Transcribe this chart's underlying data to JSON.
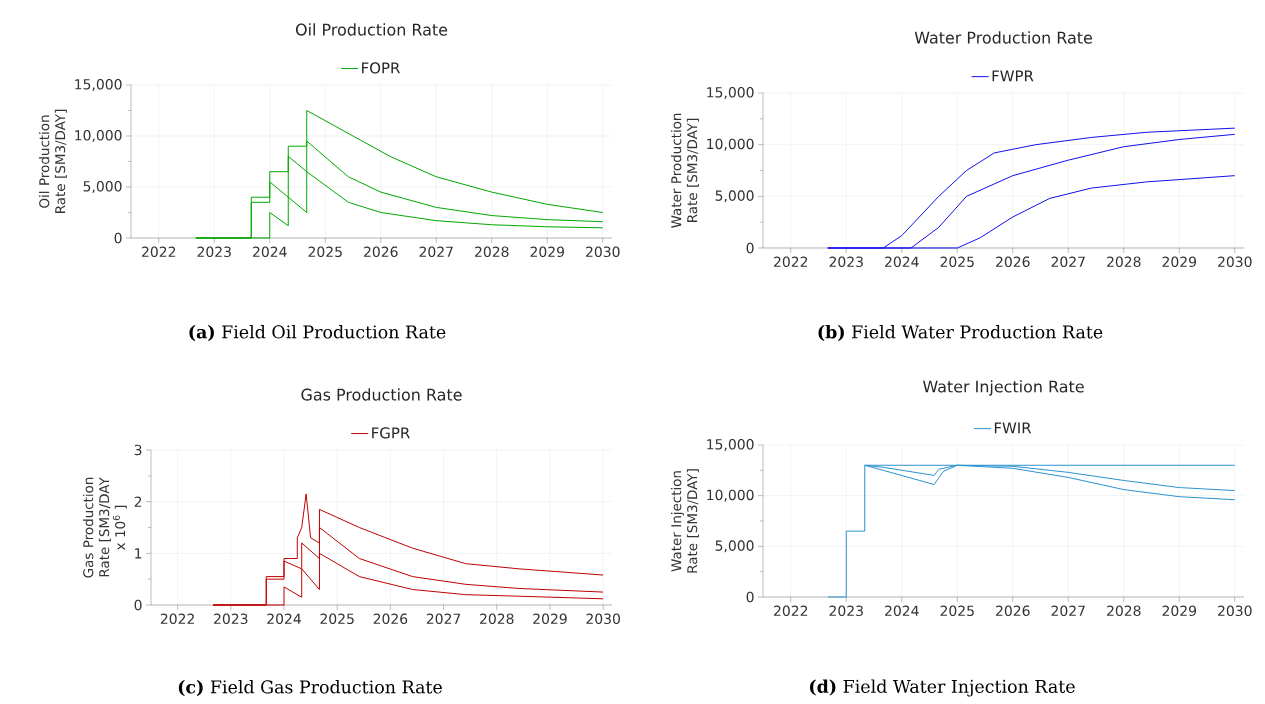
{
  "chart_data": [
    {
      "type": "line",
      "title": "Oil Production Rate",
      "ylabel": "Oil Production Rate [SM3/DAY]",
      "annotations": [
        "**(a)** Field Oil Production Rate"
      ],
      "grid": true,
      "legend": "top",
      "xlim": [
        "2021-07",
        "2030-03"
      ],
      "xticks": [
        "2022",
        "2023",
        "2024",
        "2025",
        "2026",
        "2027",
        "2028",
        "2029",
        "2030"
      ],
      "ylim": [
        0,
        15000
      ],
      "yticks": [
        0,
        {
          "value": 5000,
          "label": "5,000"
        },
        {
          "value": 10000,
          "label": "10,000"
        },
        {
          "value": 15000,
          "label": "15,000"
        }
      ],
      "series": [
        {
          "name": "FOPR",
          "color": "#00a800",
          "x": [
            "2022-09",
            "2023-09",
            "2023-09",
            "2024-01",
            "2024-01",
            "2024-05",
            "2024-05",
            "2024-09",
            "2024-09",
            "2025-03",
            "2025-09",
            "2026-03",
            "2027-01",
            "2028-01",
            "2029-01",
            "2030-01"
          ],
          "values": [
            0,
            0,
            4000,
            4000,
            6500,
            6500,
            9000,
            9000,
            12500,
            11000,
            9500,
            8000,
            6000,
            4500,
            3300,
            2500
          ]
        },
        {
          "color": "#00a800",
          "x": [
            "2022-09",
            "2023-09",
            "2023-09",
            "2024-01",
            "2024-01",
            "2024-05",
            "2024-05",
            "2024-09",
            "2024-09",
            "2025-06",
            "2026-01",
            "2027-01",
            "2028-01",
            "2029-01",
            "2030-01"
          ],
          "values": [
            0,
            0,
            3500,
            3500,
            5500,
            4000,
            8000,
            6500,
            9500,
            6000,
            4500,
            3000,
            2200,
            1800,
            1600
          ]
        },
        {
          "color": "#00a800",
          "x": [
            "2022-09",
            "2024-01",
            "2024-01",
            "2024-05",
            "2024-05",
            "2024-09",
            "2024-09",
            "2025-06",
            "2026-01",
            "2027-01",
            "2028-01",
            "2029-01",
            "2030-01"
          ],
          "values": [
            0,
            0,
            2500,
            1200,
            4000,
            2500,
            6500,
            3500,
            2500,
            1700,
            1300,
            1100,
            1000
          ]
        }
      ]
    },
    {
      "type": "line",
      "title": "Water Production Rate",
      "ylabel": "Water Production Rate [SM3/DAY]",
      "annotations": [
        "**(b)** Field Water Production Rate"
      ],
      "grid": true,
      "legend": "top",
      "xlim": [
        "2021-07",
        "2030-03"
      ],
      "xticks": [
        "2022",
        "2023",
        "2024",
        "2025",
        "2026",
        "2027",
        "2028",
        "2029",
        "2030"
      ],
      "ylim": [
        0,
        15000
      ],
      "yticks": [
        0,
        {
          "value": 5000,
          "label": "5,000"
        },
        {
          "value": 10000,
          "label": "10,000"
        },
        {
          "value": 15000,
          "label": "15,000"
        }
      ],
      "series": [
        {
          "name": "FWPR",
          "color": "#1010f0",
          "x": [
            "2022-09",
            "2023-09",
            "2024-01",
            "2024-09",
            "2025-03",
            "2025-09",
            "2026-06",
            "2027-06",
            "2028-06",
            "2030-01"
          ],
          "values": [
            0,
            0,
            1200,
            5000,
            7500,
            9200,
            10000,
            10700,
            11200,
            11600
          ]
        },
        {
          "color": "#1010f0",
          "x": [
            "2022-09",
            "2024-03",
            "2024-09",
            "2025-03",
            "2026-01",
            "2027-01",
            "2028-01",
            "2029-01",
            "2030-01"
          ],
          "values": [
            0,
            0,
            2000,
            5000,
            7000,
            8500,
            9800,
            10500,
            11000
          ]
        },
        {
          "color": "#1010f0",
          "x": [
            "2022-09",
            "2025-01",
            "2025-06",
            "2026-01",
            "2026-09",
            "2027-06",
            "2028-06",
            "2030-01"
          ],
          "values": [
            0,
            0,
            1000,
            3000,
            4800,
            5800,
            6400,
            7000
          ]
        }
      ]
    },
    {
      "type": "line",
      "title": "Gas Production Rate",
      "ylabel": "Gas Production Rate [SM3/DAY x 10$^{6}$ ]",
      "annotations": [
        "**(c)** Field Gas Production Rate"
      ],
      "grid": true,
      "legend": "top",
      "xlim": [
        "2021-07",
        "2030-03"
      ],
      "xticks": [
        "2022",
        "2023",
        "2024",
        "2025",
        "2026",
        "2027",
        "2028",
        "2029",
        "2030"
      ],
      "ylim": [
        0,
        3
      ],
      "yticks": [
        0,
        1,
        2,
        3
      ],
      "series": [
        {
          "name": "FGPR",
          "color": "#c00000",
          "x": [
            "2022-09",
            "2023-09",
            "2023-09",
            "2024-01",
            "2024-01",
            "2024-04",
            "2024-04",
            "2024-05",
            "2024-06",
            "2024-07",
            "2024-09",
            "2024-09",
            "2025-06",
            "2026-06",
            "2027-06",
            "2028-06",
            "2030-01"
          ],
          "values": [
            0,
            0,
            0.55,
            0.55,
            0.9,
            0.9,
            1.3,
            1.5,
            2.15,
            1.3,
            1.2,
            1.85,
            1.5,
            1.1,
            0.8,
            0.7,
            0.58
          ]
        },
        {
          "color": "#c00000",
          "x": [
            "2022-09",
            "2023-09",
            "2023-09",
            "2024-01",
            "2024-01",
            "2024-05",
            "2024-05",
            "2024-09",
            "2024-09",
            "2025-06",
            "2026-06",
            "2027-06",
            "2028-06",
            "2030-01"
          ],
          "values": [
            0,
            0,
            0.5,
            0.5,
            0.85,
            0.7,
            1.2,
            0.9,
            1.5,
            0.9,
            0.55,
            0.4,
            0.32,
            0.25
          ]
        },
        {
          "color": "#c00000",
          "x": [
            "2022-09",
            "2024-01",
            "2024-01",
            "2024-05",
            "2024-05",
            "2024-09",
            "2024-09",
            "2025-06",
            "2026-06",
            "2027-06",
            "2028-06",
            "2030-01"
          ],
          "values": [
            0,
            0,
            0.35,
            0.15,
            0.7,
            0.3,
            1.0,
            0.55,
            0.3,
            0.2,
            0.17,
            0.12
          ]
        }
      ]
    },
    {
      "type": "line",
      "title": "Water Injection Rate",
      "ylabel": "Water Injection Rate [SM3/DAY]",
      "annotations": [
        "**(d)** Field Water Injection Rate"
      ],
      "grid": true,
      "legend": "top",
      "xlim": [
        "2021-07",
        "2030-03"
      ],
      "xticks": [
        "2022",
        "2023",
        "2024",
        "2025",
        "2026",
        "2027",
        "2028",
        "2029",
        "2030"
      ],
      "ylim": [
        0,
        15000
      ],
      "yticks": [
        0,
        {
          "value": 5000,
          "label": "5,000"
        },
        {
          "value": 10000,
          "label": "10,000"
        },
        {
          "value": 15000,
          "label": "15,000"
        }
      ],
      "series": [
        {
          "name": "FWIR",
          "color": "#2a92d0",
          "x": [
            "2022-09",
            "2023-01",
            "2023-01",
            "2023-05",
            "2023-05",
            "2030-01"
          ],
          "values": [
            0,
            0,
            6500,
            6500,
            13000,
            13000
          ]
        },
        {
          "color": "#2a92d0",
          "x": [
            "2023-05",
            "2023-09",
            "2024-08",
            "2024-09",
            "2025-01",
            "2026-01",
            "2027-01",
            "2028-01",
            "2029-01",
            "2030-01"
          ],
          "values": [
            13000,
            12800,
            12000,
            12600,
            13000,
            12900,
            12300,
            11500,
            10800,
            10500
          ]
        },
        {
          "color": "#2a92d0",
          "x": [
            "2023-05",
            "2023-09",
            "2024-08",
            "2024-10",
            "2025-01",
            "2026-01",
            "2027-01",
            "2028-01",
            "2029-01",
            "2030-01"
          ],
          "values": [
            13000,
            12500,
            11100,
            12400,
            13000,
            12700,
            11800,
            10600,
            9900,
            9600
          ]
        }
      ]
    }
  ]
}
